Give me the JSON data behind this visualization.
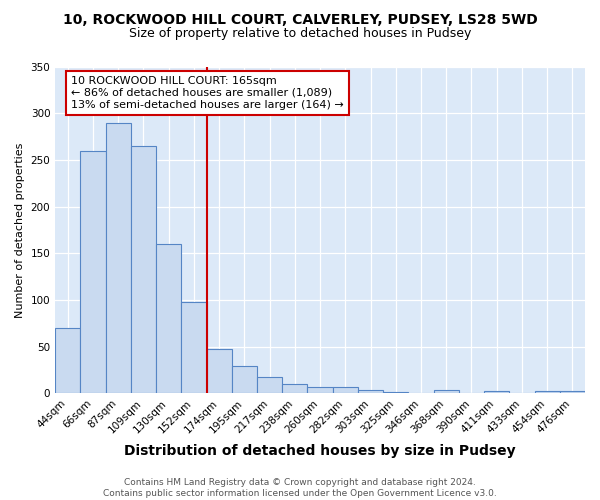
{
  "title1": "10, ROCKWOOD HILL COURT, CALVERLEY, PUDSEY, LS28 5WD",
  "title2": "Size of property relative to detached houses in Pudsey",
  "xlabel": "Distribution of detached houses by size in Pudsey",
  "ylabel": "Number of detached properties",
  "categories": [
    "44sqm",
    "66sqm",
    "87sqm",
    "109sqm",
    "130sqm",
    "152sqm",
    "174sqm",
    "195sqm",
    "217sqm",
    "238sqm",
    "260sqm",
    "282sqm",
    "303sqm",
    "325sqm",
    "346sqm",
    "368sqm",
    "390sqm",
    "411sqm",
    "433sqm",
    "454sqm",
    "476sqm"
  ],
  "values": [
    70,
    260,
    290,
    265,
    160,
    98,
    48,
    29,
    18,
    10,
    7,
    7,
    4,
    2,
    0,
    4,
    0,
    3,
    0,
    3,
    3
  ],
  "bar_color": "#c9daf0",
  "bar_edge_color": "#5585c5",
  "vline_color": "#cc0000",
  "annotation_text": "10 ROCKWOOD HILL COURT: 165sqm\n← 86% of detached houses are smaller (1,089)\n13% of semi-detached houses are larger (164) →",
  "annotation_box_facecolor": "#ffffff",
  "annotation_box_edgecolor": "#cc0000",
  "footer": "Contains HM Land Registry data © Crown copyright and database right 2024.\nContains public sector information licensed under the Open Government Licence v3.0.",
  "ylim": [
    0,
    350
  ],
  "fig_bg_color": "#ffffff",
  "plot_bg_color": "#dce9f8",
  "grid_color": "#ffffff",
  "title1_fontsize": 10,
  "title2_fontsize": 9,
  "xlabel_fontsize": 10,
  "ylabel_fontsize": 8,
  "tick_fontsize": 7.5,
  "footer_fontsize": 6.5
}
